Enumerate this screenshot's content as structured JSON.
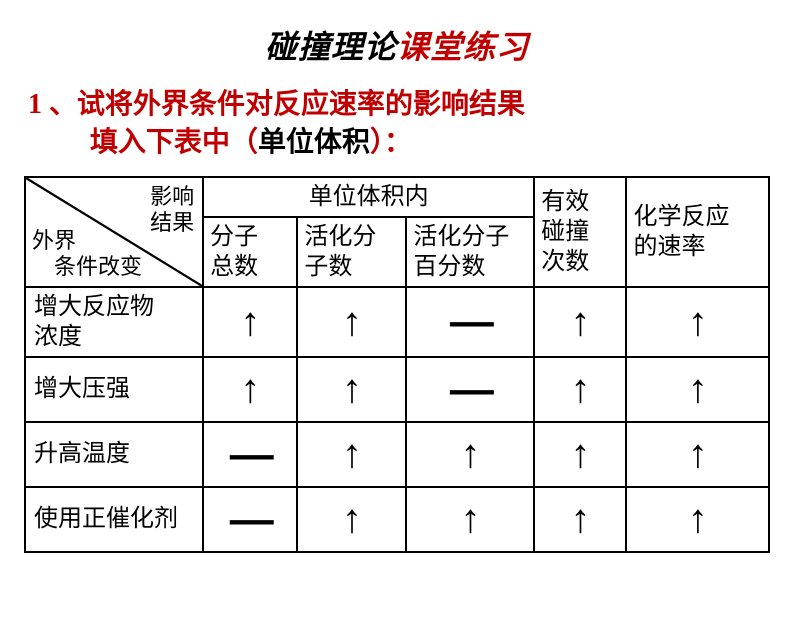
{
  "title": {
    "part1": "碰撞理论",
    "part2": "课堂练习"
  },
  "question": {
    "num": "1 、",
    "line1": "试将外界条件对反应速率的影响结果",
    "line2_a": "填入下表中（",
    "line2_b": "单位体积",
    "line2_c": "）："
  },
  "headers": {
    "diag_top": "影响\n结果",
    "diag_bot": "外界\n　条件改变",
    "group": "单位体积内",
    "sub1": "分子\n总数",
    "sub2": "活化分\n子数",
    "sub3": "活化分子\n百分数",
    "col4": "有效\n碰撞\n次数",
    "col5": "化学反应\n的速率"
  },
  "rows": [
    {
      "label": "增大反应物\n浓度",
      "cells": [
        "up",
        "up",
        "dash",
        "up",
        "up"
      ]
    },
    {
      "label": "增大压强",
      "cells": [
        "up",
        "up",
        "dash",
        "up",
        "up"
      ]
    },
    {
      "label": "升高温度",
      "cells": [
        "dash",
        "up",
        "up",
        "up",
        "up"
      ]
    },
    {
      "label": "使用正催化剂",
      "cells": [
        "dash",
        "up",
        "up",
        "up",
        "up"
      ]
    }
  ],
  "symbols": {
    "up": "↑",
    "dash": "—"
  },
  "colors": {
    "red": "#c00000",
    "black": "#000000",
    "border": "#000000",
    "bg": "#ffffff"
  }
}
